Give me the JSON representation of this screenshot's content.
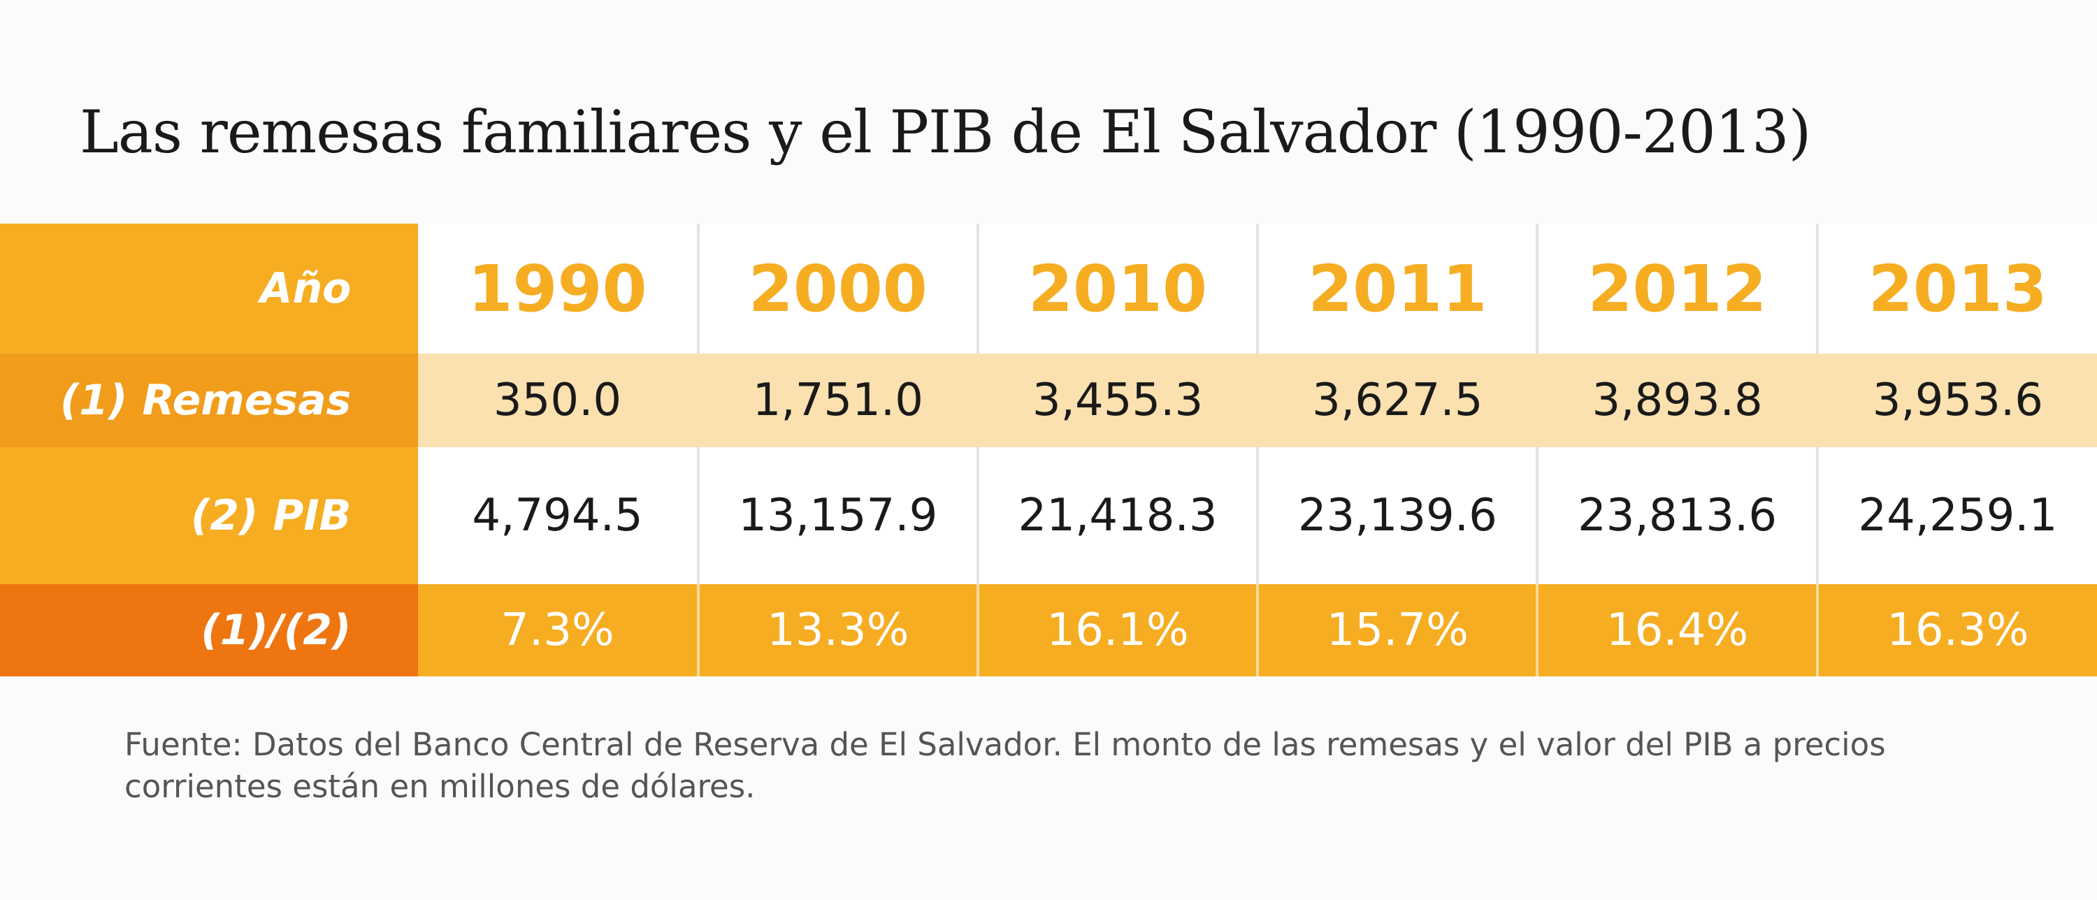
{
  "title": "Las remesas familiares y el PIB de El Salvador (1990-2013)",
  "source": "Fuente: Datos del Banco Central de Reserva de El Salvador. El monto de las remesas y el valor del PIB a precios corrientes están en millones de dólares.",
  "colors": {
    "accent": "#f6ad22",
    "remesas_row": "#fbe1b0",
    "ratio_header": "#ee7510"
  },
  "chart_data": {
    "type": "table",
    "title": "Las remesas familiares y el PIB de El Salvador (1990-2013)",
    "header_label": "Año",
    "columns": [
      "1990",
      "2000",
      "2010",
      "2011",
      "2012",
      "2013"
    ],
    "rows": [
      {
        "label": "(1) Remesas",
        "values": [
          "350.0",
          "1,751.0",
          "3,455.3",
          "3,627.5",
          "3,893.8",
          "3,953.6"
        ]
      },
      {
        "label": "(2) PIB",
        "values": [
          "4,794.5",
          "13,157.9",
          "21,418.3",
          "23,139.6",
          "23,813.6",
          "24,259.1"
        ]
      },
      {
        "label": "(1)/(2)",
        "values": [
          "7.3%",
          "13.3%",
          "16.1%",
          "15.7%",
          "16.4%",
          "16.3%"
        ]
      }
    ]
  }
}
